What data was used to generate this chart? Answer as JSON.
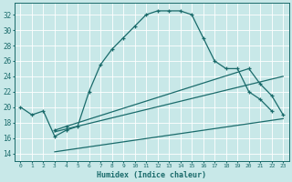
{
  "background_color": "#c8e8e8",
  "grid_color": "#b8d8d8",
  "line_color": "#1a6b6b",
  "xlabel": "Humidex (Indice chaleur)",
  "xlim": [
    -0.5,
    23.5
  ],
  "ylim": [
    13,
    33.5
  ],
  "yticks": [
    14,
    16,
    18,
    20,
    22,
    24,
    26,
    28,
    30,
    32
  ],
  "xticks": [
    0,
    1,
    2,
    3,
    4,
    5,
    6,
    7,
    8,
    9,
    10,
    11,
    12,
    13,
    14,
    15,
    16,
    17,
    18,
    19,
    20,
    21,
    22,
    23
  ],
  "line1_x": [
    0,
    1,
    2,
    3,
    4,
    5,
    6,
    7,
    8,
    9,
    10,
    11,
    12,
    13,
    14,
    15,
    16,
    17,
    18,
    19,
    20,
    21,
    22
  ],
  "line1_y": [
    20.0,
    19.0,
    19.5,
    16.2,
    17.0,
    17.5,
    22.0,
    25.5,
    27.5,
    29.0,
    30.5,
    32.0,
    32.5,
    32.5,
    32.5,
    32.0,
    29.0,
    26.0,
    25.0,
    25.0,
    22.0,
    21.0,
    19.5
  ],
  "line2_x": [
    3,
    4,
    20,
    21,
    22,
    23
  ],
  "line2_y": [
    17.0,
    17.5,
    25.0,
    23.0,
    21.5,
    19.0
  ],
  "line3_x": [
    3,
    23
  ],
  "line3_y": [
    16.8,
    24.0
  ],
  "line4_x": [
    3,
    23
  ],
  "line4_y": [
    14.2,
    18.5
  ]
}
